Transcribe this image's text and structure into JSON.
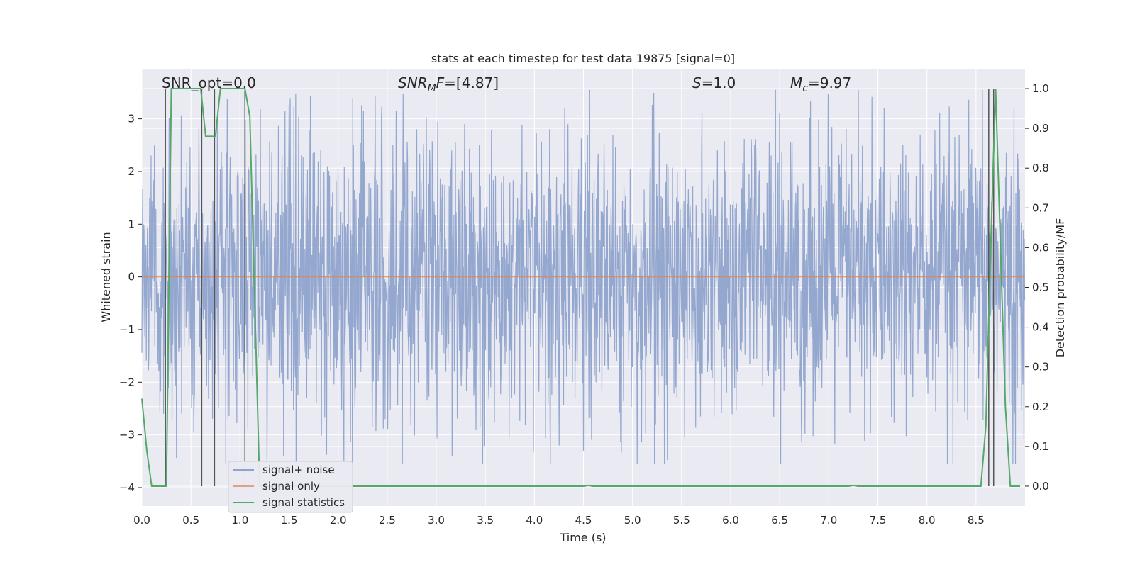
{
  "chart_data": {
    "type": "line",
    "title": "stats at each timestep for test data 19875 [signal=0]",
    "xlabel": "Time (s)",
    "ylabel": "Whitened strain",
    "ylabel_right": "Detection probability/MF",
    "xlim": [
      0.0,
      9.0
    ],
    "ylim": [
      -4.35,
      3.95
    ],
    "ylim_right": [
      -0.05,
      1.05
    ],
    "x_ticks": [
      "0.0",
      "0.5",
      "1.0",
      "1.5",
      "2.0",
      "2.5",
      "3.0",
      "3.5",
      "4.0",
      "4.5",
      "5.0",
      "5.5",
      "6.0",
      "6.5",
      "7.0",
      "7.5",
      "8.0",
      "8.5"
    ],
    "y_ticks": [
      "3",
      "2",
      "1",
      "0",
      "−1",
      "−2",
      "−3",
      "−4"
    ],
    "y_ticks_right": [
      "1.0",
      "0.9",
      "0.8",
      "0.7",
      "0.6",
      "0.5",
      "0.4",
      "0.3",
      "0.2",
      "0.1",
      "0.0"
    ],
    "annotations": {
      "snr_opt": "SNR_opt=0.0",
      "snr_mf": "=[4.87]",
      "s_val": "=1.0",
      "mc_val": "=9.97"
    },
    "legend": [
      {
        "label": "signal+ noise",
        "color": "#8fa3cc"
      },
      {
        "label": "signal only",
        "color": "#dd8452"
      },
      {
        "label": "signal statistics",
        "color": "#55a868"
      }
    ],
    "series": [
      {
        "name": "signal+ noise",
        "noise_amplitude": 1.35,
        "peak_amplitude": 3.55
      },
      {
        "name": "signal only",
        "x": [
          0.0,
          9.0
        ],
        "y": [
          0.0,
          0.0
        ]
      },
      {
        "name": "signal statistics",
        "x": [
          0.0,
          0.05,
          0.1,
          0.25,
          0.3,
          0.6,
          0.65,
          0.75,
          0.8,
          1.05,
          1.1,
          1.2,
          4.5,
          4.55,
          4.6,
          7.2,
          7.25,
          7.3,
          8.55,
          8.6,
          8.65,
          8.7,
          8.75,
          8.8,
          8.85,
          8.95
        ],
        "y": [
          0.22,
          0.09,
          0.0,
          0.0,
          1.0,
          1.0,
          0.88,
          0.88,
          1.0,
          1.0,
          0.93,
          0.0,
          0.0,
          0.002,
          0.0,
          0.0,
          0.002,
          0.0,
          0.0,
          0.15,
          0.6,
          1.0,
          0.6,
          0.2,
          0.0,
          0.0
        ]
      }
    ],
    "vertical_markers": [
      0.24,
      0.61,
      0.74,
      1.05,
      8.63,
      8.68
    ]
  },
  "colors": {
    "plot_bg": "#eaeaf2",
    "grid": "#ffffff",
    "noise": "#8fa3cc",
    "signal": "#dd8452",
    "stats": "#55a868",
    "marker": "#555555"
  }
}
